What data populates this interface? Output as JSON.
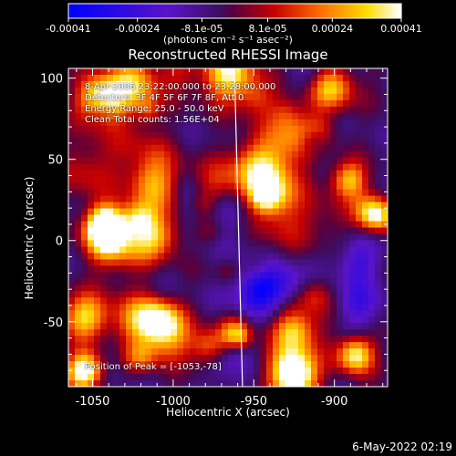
{
  "colorbar": {
    "tick_labels": [
      "-0.00041",
      "-0.00024",
      "-8.1e-05",
      "8.1e-05",
      "0.00024",
      "0.00041"
    ],
    "tick_values": [
      -0.00041,
      -0.00024,
      -8.1e-05,
      8.1e-05,
      0.00024,
      0.00041
    ],
    "unit_label": "(photons cm⁻² s⁻¹ asec⁻²)"
  },
  "annotations": [
    "8-Apr-2006 23:22:00.000 to 23:28:00.000",
    "Detectors: 3F 4F 5F 6F 7F 8F, Att 0",
    "Energy Range: 25.0 - 50.0 keV",
    "Clean    Total counts: 1.56E+04"
  ],
  "peak_label": "Position of Peak = [-1053,-78]",
  "datestamp": "6-May-2022 02:19",
  "chart_data": {
    "type": "heatmap",
    "title": "Reconstructed RHESSI Image",
    "xlabel": "Heliocentric X (arcsec)",
    "ylabel": "Heliocentric Y (arcsec)",
    "xlim": [
      -1065,
      -867
    ],
    "ylim": [
      -90,
      106
    ],
    "x_ticks": [
      -1050,
      -1000,
      -950,
      -900
    ],
    "x_tick_labels": [
      "-1050",
      "-1000",
      "-950",
      "-900"
    ],
    "y_ticks": [
      -50,
      0,
      50,
      100
    ],
    "y_tick_labels": [
      "-50",
      "0",
      "50",
      "100"
    ],
    "color_range": [
      -0.00041,
      0.00041
    ],
    "colormap": "blue-purple-red-yellow-white",
    "peak_position": [
      -1053,
      -78
    ],
    "limb_line_x_at_top": -962,
    "limb_line_x_at_bottom": -957,
    "limb_color": "#ffffff"
  }
}
